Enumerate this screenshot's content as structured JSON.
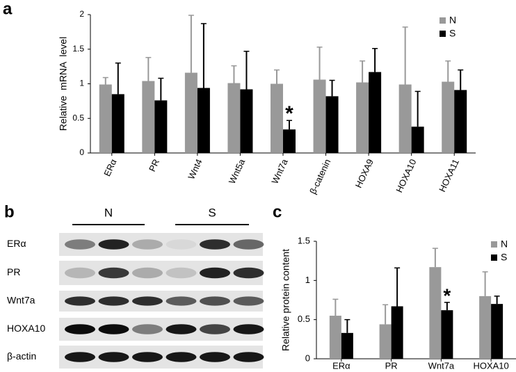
{
  "chart_data": [
    {
      "type": "bar",
      "panel_label": "a",
      "y_label": "Relative  mRNA  level",
      "categories": [
        "ERα",
        "PR",
        "Wnt4",
        "Wnt5a",
        "Wnt7a",
        "β-catenin",
        "HOXA9",
        "HOXA10",
        "HOXA11"
      ],
      "series": [
        {
          "name": "N",
          "color": "#999999",
          "values": [
            0.99,
            1.04,
            1.16,
            1.01,
            1.0,
            1.06,
            1.02,
            0.99,
            1.03
          ],
          "errors": [
            0.1,
            0.34,
            0.83,
            0.25,
            0.2,
            0.47,
            0.31,
            0.83,
            0.3
          ]
        },
        {
          "name": "S",
          "color": "#000000",
          "values": [
            0.85,
            0.76,
            0.94,
            0.92,
            0.34,
            0.82,
            1.17,
            0.38,
            0.91
          ],
          "errors": [
            0.45,
            0.32,
            0.93,
            0.55,
            0.13,
            0.23,
            0.34,
            0.51,
            0.29
          ]
        }
      ],
      "ylim": [
        0,
        2
      ],
      "yticks": [
        0,
        0.5,
        1,
        1.5,
        2
      ],
      "legend": "top right",
      "annotations": [
        {
          "text": "*",
          "category": "Wnt7a"
        }
      ]
    },
    {
      "type": "bar",
      "panel_label": "c",
      "y_label": "Relative protein content",
      "categories": [
        "ERα",
        "PR",
        "Wnt7a",
        "HOXA10"
      ],
      "series": [
        {
          "name": "N",
          "color": "#999999",
          "values": [
            0.55,
            0.44,
            1.17,
            0.8
          ],
          "errors": [
            0.21,
            0.25,
            0.24,
            0.31
          ]
        },
        {
          "name": "S",
          "color": "#000000",
          "values": [
            0.33,
            0.67,
            0.62,
            0.7
          ],
          "errors": [
            0.17,
            0.49,
            0.1,
            0.1
          ]
        }
      ],
      "ylim": [
        0,
        1.5
      ],
      "yticks": [
        0,
        0.5,
        1,
        1.5
      ],
      "legend": "top right",
      "annotations": [
        {
          "text": "*",
          "category": "Wnt7a"
        }
      ]
    }
  ],
  "blot": {
    "panel_label": "b",
    "groups": [
      "N",
      "S"
    ],
    "rows": [
      "ERα",
      "PR",
      "Wnt7a",
      "HOXA10",
      "β-actin"
    ]
  }
}
